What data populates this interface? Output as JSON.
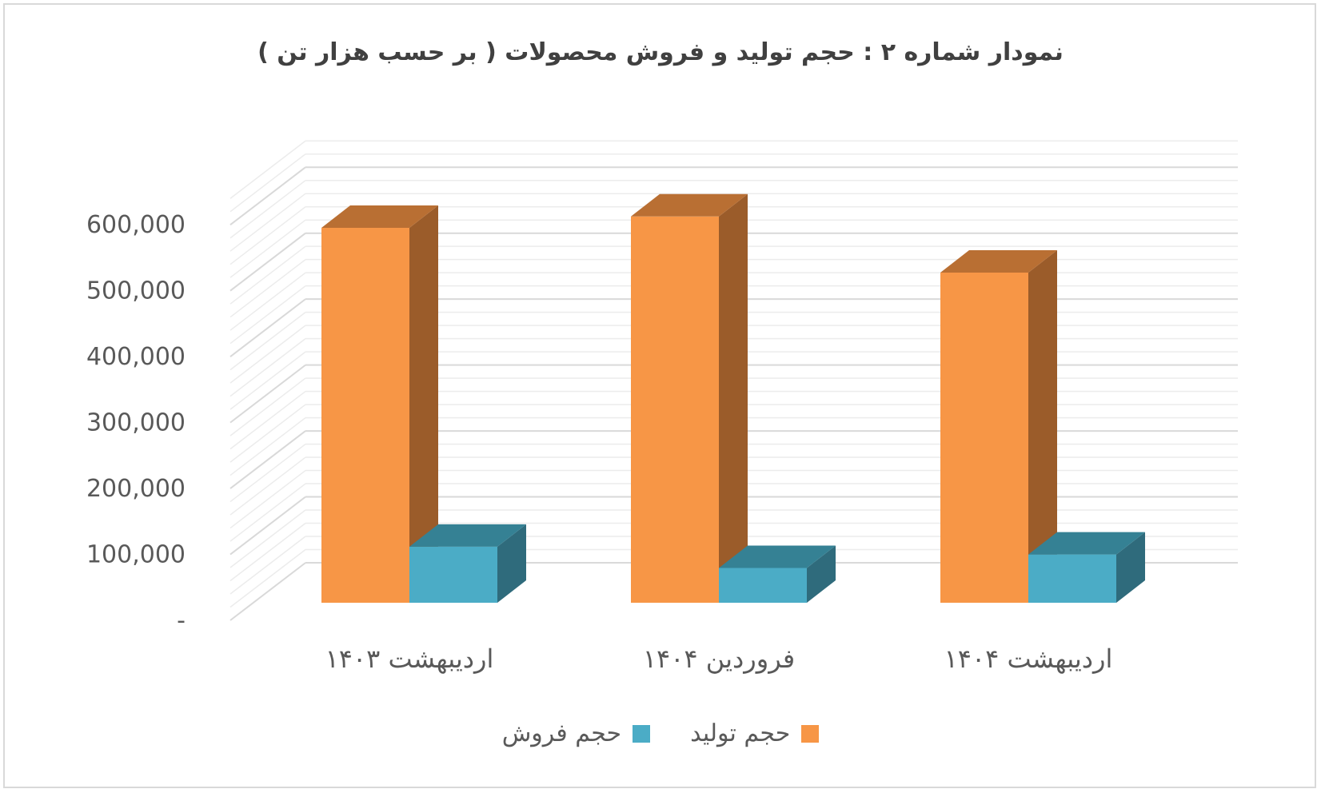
{
  "chart_data": {
    "type": "bar",
    "title": "نمودار شماره ۲ : حجم  تولید و فروش محصولات ( بر حسب هزار تن )",
    "categories": [
      "اردیبهشت ۱۴۰۳",
      "فروردین ۱۴۰۴",
      "اردیبهشت ۱۴۰۴"
    ],
    "series": [
      {
        "name": "حجم تولید",
        "values": [
          528000,
          544000,
          465000
        ],
        "color": "#f79646",
        "side_color": "#9b5c2a",
        "top_color": "#b96f33"
      },
      {
        "name": "حجم فروش",
        "values": [
          79000,
          49000,
          68000
        ],
        "color": "#4bacc6",
        "side_color": "#2f6b7c",
        "top_color": "#358194"
      }
    ],
    "ytick_labels": [
      "-",
      "100,000",
      "200,000",
      "300,000",
      "400,000",
      "500,000",
      "600,000"
    ],
    "ylim": [
      0,
      600000
    ],
    "grid": true,
    "legend_position": "bottom",
    "projection": "3d-column"
  }
}
